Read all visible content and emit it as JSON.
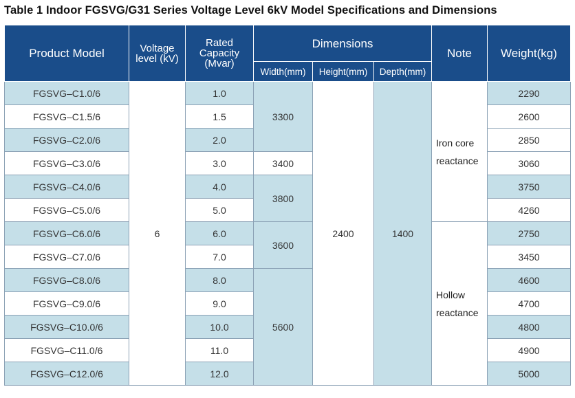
{
  "title": "Table 1 Indoor FGSVG/G31 Series Voltage Level 6kV Model Specifications and Dimensions",
  "headers": {
    "product_model": "Product Model",
    "voltage_level": "Voltage level (kV)",
    "rated_capacity": "Rated Capacity (Mvar)",
    "dimensions": "Dimensions",
    "width": "Width(mm)",
    "height": "Height(mm)",
    "depth": "Depth(mm)",
    "note": "Note",
    "weight": "Weight(kg)"
  },
  "shared": {
    "voltage": "6",
    "height": "2400",
    "depth": "1400",
    "note_iron": "Iron core reactance",
    "note_hollow": "Hollow reactance"
  },
  "widths": [
    "3300",
    "3400",
    "3800",
    "3600",
    "5600"
  ],
  "rows": [
    {
      "model": "FGSVG–C1.0/6",
      "capacity": "1.0",
      "weight": "2290"
    },
    {
      "model": "FGSVG–C1.5/6",
      "capacity": "1.5",
      "weight": "2600"
    },
    {
      "model": "FGSVG–C2.0/6",
      "capacity": "2.0",
      "weight": "2850"
    },
    {
      "model": "FGSVG–C3.0/6",
      "capacity": "3.0",
      "weight": "3060"
    },
    {
      "model": "FGSVG–C4.0/6",
      "capacity": "4.0",
      "weight": "3750"
    },
    {
      "model": "FGSVG–C5.0/6",
      "capacity": "5.0",
      "weight": "4260"
    },
    {
      "model": "FGSVG–C6.0/6",
      "capacity": "6.0",
      "weight": "2750"
    },
    {
      "model": "FGSVG–C7.0/6",
      "capacity": "7.0",
      "weight": "3450"
    },
    {
      "model": "FGSVG–C8.0/6",
      "capacity": "8.0",
      "weight": "4600"
    },
    {
      "model": "FGSVG–C9.0/6",
      "capacity": "9.0",
      "weight": "4700"
    },
    {
      "model": "FGSVG–C10.0/6",
      "capacity": "10.0",
      "weight": "4800"
    },
    {
      "model": "FGSVG–C11.0/6",
      "capacity": "11.0",
      "weight": "4900"
    },
    {
      "model": "FGSVG–C12.0/6",
      "capacity": "12.0",
      "weight": "5000"
    }
  ]
}
